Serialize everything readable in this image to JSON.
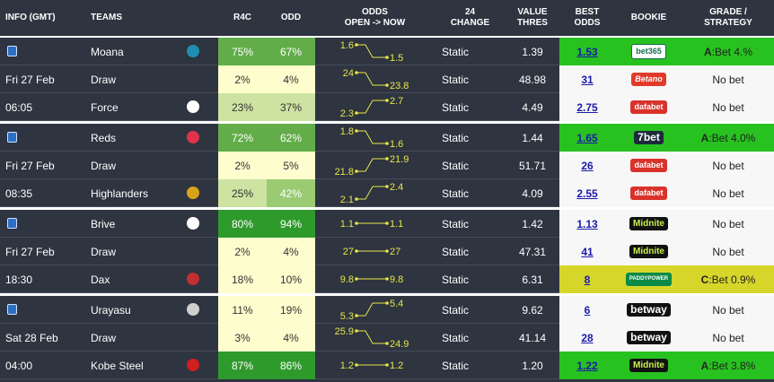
{
  "header": [
    "INFO (GMT)",
    "TEAMS",
    "R4C",
    "ODD",
    "ODDS\nOPEN -> NOW",
    "24\nCHANGE",
    "VALUE\nTHRES",
    "BEST\nODDS",
    "BOOKIE",
    "GRADE /\nSTRATEGY"
  ],
  "groups": [
    {
      "date": "Fri 27 Feb",
      "time": "06:05",
      "rows": [
        {
          "team": "Moana",
          "r4c": "75%",
          "odd": "67%",
          "open": "1.6",
          "now": "1.5",
          "change": "Static",
          "value": "1.39",
          "best": "1.53",
          "bookie": "bet365",
          "grade": {
            "letter": "A",
            "text": ":Bet 4.%"
          },
          "r4c_color": "#62ad4a",
          "odd_color": "#62ad4a",
          "hl": "#27c21f"
        },
        {
          "team": "Draw",
          "r4c": "2%",
          "odd": "4%",
          "open": "24",
          "now": "23.8",
          "change": "Static",
          "value": "48.98",
          "best": "31",
          "bookie": "Betano",
          "grade": {
            "text": "No bet"
          },
          "r4c_color": "#fdfdce",
          "odd_color": "#fdfdce"
        },
        {
          "team": "Force",
          "r4c": "23%",
          "odd": "37%",
          "open": "2.3",
          "now": "2.7",
          "change": "Static",
          "value": "4.49",
          "best": "2.75",
          "bookie": "dafabet",
          "grade": {
            "text": "No bet"
          },
          "r4c_color": "#cde3a2",
          "odd_color": "#cde3a2"
        }
      ]
    },
    {
      "date": "Fri 27 Feb",
      "time": "08:35",
      "rows": [
        {
          "team": "Reds",
          "r4c": "72%",
          "odd": "62%",
          "open": "1.8",
          "now": "1.6",
          "change": "Static",
          "value": "1.44",
          "best": "1.65",
          "bookie": "7bet",
          "grade": {
            "letter": "A",
            "text": ":Bet 4.0%"
          },
          "r4c_color": "#62ad4a",
          "odd_color": "#62ad4a",
          "hl": "#27c21f"
        },
        {
          "team": "Draw",
          "r4c": "2%",
          "odd": "5%",
          "open": "21.8",
          "now": "21.9",
          "change": "Static",
          "value": "51.71",
          "best": "26",
          "bookie": "dafabet",
          "grade": {
            "text": "No bet"
          },
          "r4c_color": "#fdfdce",
          "odd_color": "#fdfdce"
        },
        {
          "team": "Highlanders",
          "r4c": "25%",
          "odd": "42%",
          "open": "2.1",
          "now": "2.4",
          "change": "Static",
          "value": "4.09",
          "best": "2.55",
          "bookie": "dafabet",
          "grade": {
            "text": "No bet"
          },
          "r4c_color": "#cde3a2",
          "odd_color": "#9acb72"
        }
      ]
    },
    {
      "date": "Fri 27 Feb",
      "time": "18:30",
      "rows": [
        {
          "team": "Brive",
          "r4c": "80%",
          "odd": "94%",
          "open": "1.1",
          "now": "1.1",
          "change": "Static",
          "value": "1.42",
          "best": "1.13",
          "bookie": "Midnite",
          "grade": {
            "text": "No bet"
          },
          "r4c_color": "#2f9a2c",
          "odd_color": "#2f9a2c"
        },
        {
          "team": "Draw",
          "r4c": "2%",
          "odd": "4%",
          "open": "27",
          "now": "27",
          "change": "Static",
          "value": "47.31",
          "best": "41",
          "bookie": "Midnite",
          "grade": {
            "text": "No bet"
          },
          "r4c_color": "#fdfdce",
          "odd_color": "#fdfdce"
        },
        {
          "team": "Dax",
          "r4c": "18%",
          "odd": "10%",
          "open": "9.8",
          "now": "9.8",
          "change": "Static",
          "value": "6.31",
          "best": "8",
          "bookie": "PADDYPOWER",
          "grade": {
            "letter": "C",
            "text": ":Bet 0.9%"
          },
          "r4c_color": "#fdfdce",
          "odd_color": "#fdfdce",
          "hl": "#d6d62a"
        }
      ]
    },
    {
      "date": "Sat 28 Feb",
      "time": "04:00",
      "rows": [
        {
          "team": "Urayasu",
          "r4c": "11%",
          "odd": "19%",
          "open": "5.3",
          "now": "5.4",
          "change": "Static",
          "value": "9.62",
          "best": "6",
          "bookie": "betway",
          "grade": {
            "text": "No bet"
          },
          "r4c_color": "#fdfdce",
          "odd_color": "#fdfdce"
        },
        {
          "team": "Draw",
          "r4c": "3%",
          "odd": "4%",
          "open": "25.9",
          "now": "24.9",
          "change": "Static",
          "value": "41.14",
          "best": "28",
          "bookie": "betway",
          "grade": {
            "text": "No bet"
          },
          "r4c_color": "#fdfdce",
          "odd_color": "#fdfdce"
        },
        {
          "team": "Kobe Steel",
          "r4c": "87%",
          "odd": "86%",
          "open": "1.2",
          "now": "1.2",
          "change": "Static",
          "value": "1.20",
          "best": "1.22",
          "bookie": "Midnite",
          "grade": {
            "letter": "A",
            "text": ":Bet 3.8%"
          },
          "r4c_color": "#2f9a2c",
          "odd_color": "#2f9a2c",
          "hl": "#27c21f"
        }
      ]
    }
  ]
}
